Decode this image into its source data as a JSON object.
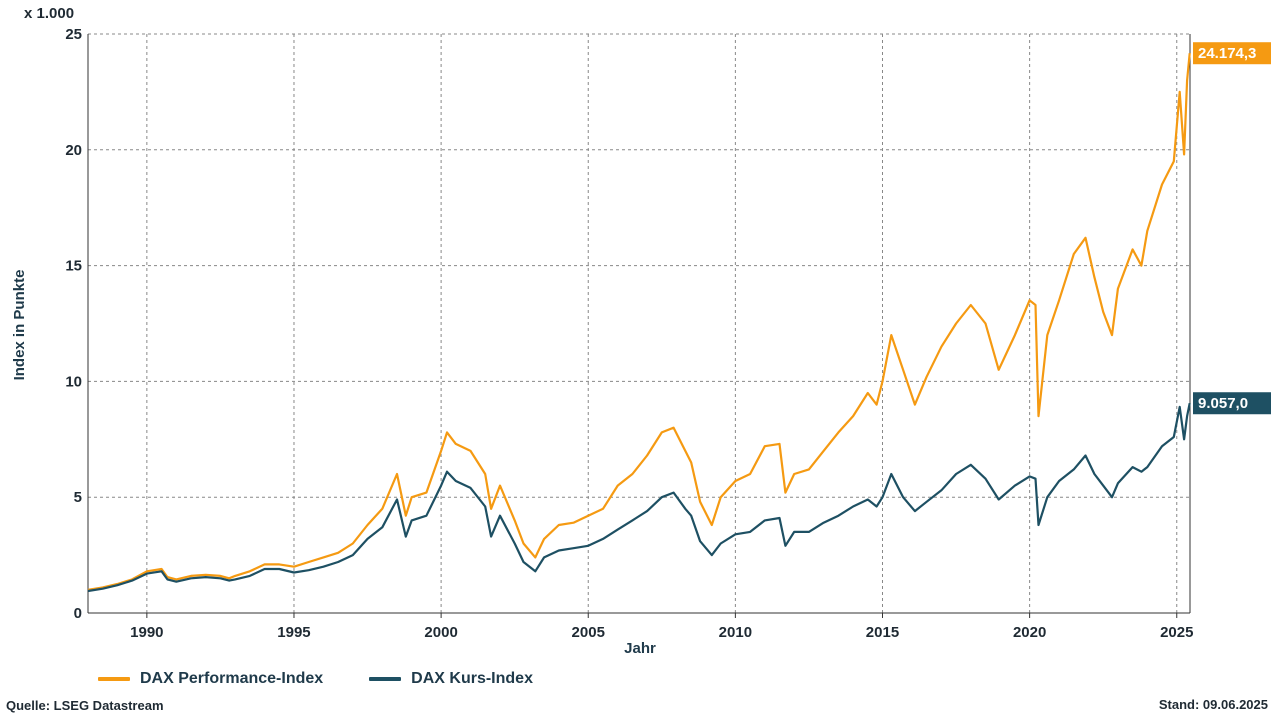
{
  "chart_data": {
    "type": "line",
    "unit_label": "x 1.000",
    "ylabel": "Index in Punkte",
    "xlabel": "Jahr",
    "ylim": [
      0,
      25
    ],
    "xlim": [
      1988.0,
      2025.45
    ],
    "y_ticks": [
      "0",
      "5",
      "10",
      "15",
      "20",
      "25"
    ],
    "x_ticks": [
      "1990",
      "1995",
      "2000",
      "2005",
      "2010",
      "2015",
      "2020",
      "2025"
    ],
    "grid": true,
    "legend_position": "bottom-left",
    "series": [
      {
        "name": "DAX Performance-Index",
        "color": "#f59a12",
        "end_label": "24.174,3",
        "x": [
          1988.0,
          1988.5,
          1989.0,
          1989.5,
          1990.0,
          1990.5,
          1990.7,
          1991.0,
          1991.5,
          1992.0,
          1992.5,
          1992.8,
          1993.0,
          1993.5,
          1994.0,
          1994.5,
          1995.0,
          1995.5,
          1996.0,
          1996.5,
          1997.0,
          1997.5,
          1998.0,
          1998.5,
          1998.8,
          1999.0,
          1999.5,
          2000.0,
          2000.2,
          2000.5,
          2001.0,
          2001.5,
          2001.7,
          2002.0,
          2002.5,
          2002.8,
          2003.2,
          2003.5,
          2004.0,
          2004.5,
          2005.0,
          2005.5,
          2006.0,
          2006.5,
          2007.0,
          2007.5,
          2007.9,
          2008.3,
          2008.5,
          2008.8,
          2009.2,
          2009.5,
          2010.0,
          2010.5,
          2011.0,
          2011.5,
          2011.7,
          2012.0,
          2012.5,
          2013.0,
          2013.5,
          2014.0,
          2014.5,
          2014.8,
          2015.0,
          2015.3,
          2015.7,
          2016.1,
          2016.5,
          2017.0,
          2017.5,
          2018.0,
          2018.5,
          2018.95,
          2019.5,
          2020.0,
          2020.2,
          2020.3,
          2020.6,
          2021.0,
          2021.5,
          2021.9,
          2022.2,
          2022.5,
          2022.8,
          2023.0,
          2023.5,
          2023.8,
          2024.0,
          2024.5,
          2024.9,
          2025.1,
          2025.25,
          2025.35,
          2025.44
        ],
        "y": [
          1.0,
          1.1,
          1.25,
          1.45,
          1.8,
          1.9,
          1.55,
          1.45,
          1.6,
          1.65,
          1.6,
          1.5,
          1.6,
          1.8,
          2.1,
          2.1,
          2.0,
          2.2,
          2.4,
          2.6,
          3.0,
          3.8,
          4.5,
          6.0,
          4.2,
          5.0,
          5.2,
          7.0,
          7.8,
          7.3,
          7.0,
          6.0,
          4.5,
          5.5,
          4.0,
          3.0,
          2.4,
          3.2,
          3.8,
          3.9,
          4.2,
          4.5,
          5.5,
          6.0,
          6.8,
          7.8,
          8.0,
          7.0,
          6.5,
          4.8,
          3.8,
          5.0,
          5.7,
          6.0,
          7.2,
          7.3,
          5.2,
          6.0,
          6.2,
          7.0,
          7.8,
          8.5,
          9.5,
          9.0,
          10.0,
          12.0,
          10.5,
          9.0,
          10.2,
          11.5,
          12.5,
          13.3,
          12.5,
          10.5,
          12.0,
          13.5,
          13.3,
          8.5,
          12.0,
          13.5,
          15.5,
          16.2,
          14.5,
          13.0,
          12.0,
          14.0,
          15.7,
          15.0,
          16.5,
          18.5,
          19.5,
          22.5,
          19.8,
          23.0,
          24.17
        ]
      },
      {
        "name": "DAX Kurs-Index",
        "color": "#1e5063",
        "end_label": "9.057,0",
        "x": [
          1988.0,
          1988.5,
          1989.0,
          1989.5,
          1990.0,
          1990.5,
          1990.7,
          1991.0,
          1991.5,
          1992.0,
          1992.5,
          1992.8,
          1993.0,
          1993.5,
          1994.0,
          1994.5,
          1995.0,
          1995.5,
          1996.0,
          1996.5,
          1997.0,
          1997.5,
          1998.0,
          1998.5,
          1998.8,
          1999.0,
          1999.5,
          2000.0,
          2000.2,
          2000.5,
          2001.0,
          2001.5,
          2001.7,
          2002.0,
          2002.5,
          2002.8,
          2003.2,
          2003.5,
          2004.0,
          2004.5,
          2005.0,
          2005.5,
          2006.0,
          2006.5,
          2007.0,
          2007.5,
          2007.9,
          2008.3,
          2008.5,
          2008.8,
          2009.2,
          2009.5,
          2010.0,
          2010.5,
          2011.0,
          2011.5,
          2011.7,
          2012.0,
          2012.5,
          2013.0,
          2013.5,
          2014.0,
          2014.5,
          2014.8,
          2015.0,
          2015.3,
          2015.7,
          2016.1,
          2016.5,
          2017.0,
          2017.5,
          2018.0,
          2018.5,
          2018.95,
          2019.5,
          2020.0,
          2020.2,
          2020.3,
          2020.6,
          2021.0,
          2021.5,
          2021.9,
          2022.2,
          2022.5,
          2022.8,
          2023.0,
          2023.5,
          2023.8,
          2024.0,
          2024.5,
          2024.9,
          2025.1,
          2025.25,
          2025.35,
          2025.44
        ],
        "y": [
          0.95,
          1.05,
          1.2,
          1.4,
          1.7,
          1.8,
          1.45,
          1.35,
          1.5,
          1.55,
          1.5,
          1.4,
          1.45,
          1.6,
          1.9,
          1.9,
          1.75,
          1.85,
          2.0,
          2.2,
          2.5,
          3.2,
          3.7,
          4.9,
          3.3,
          4.0,
          4.2,
          5.5,
          6.1,
          5.7,
          5.4,
          4.6,
          3.3,
          4.2,
          3.0,
          2.2,
          1.8,
          2.4,
          2.7,
          2.8,
          2.9,
          3.2,
          3.6,
          4.0,
          4.4,
          5.0,
          5.2,
          4.5,
          4.2,
          3.1,
          2.5,
          3.0,
          3.4,
          3.5,
          4.0,
          4.1,
          2.9,
          3.5,
          3.5,
          3.9,
          4.2,
          4.6,
          4.9,
          4.6,
          5.0,
          6.0,
          5.0,
          4.4,
          4.8,
          5.3,
          6.0,
          6.4,
          5.8,
          4.9,
          5.5,
          5.9,
          5.8,
          3.8,
          5.0,
          5.7,
          6.2,
          6.8,
          6.0,
          5.5,
          5.0,
          5.6,
          6.3,
          6.1,
          6.3,
          7.2,
          7.6,
          8.9,
          7.5,
          8.5,
          9.057
        ]
      }
    ]
  },
  "footer": {
    "source": "Quelle: LSEG Datastream",
    "date": "Stand: 09.06.2025"
  }
}
